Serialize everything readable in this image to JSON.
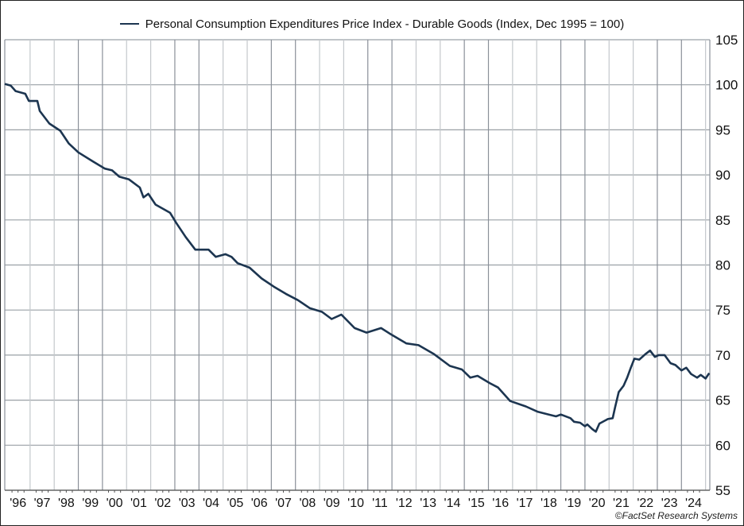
{
  "chart_data": {
    "type": "line",
    "title": "",
    "legend": [
      "Personal Consumption Expenditures Price Index - Durable Goods (Index, Dec 1995 = 100)"
    ],
    "legend_position": "top-center",
    "xlabel": "",
    "ylabel": "",
    "ylim": [
      55,
      105
    ],
    "xlim": [
      1995.95,
      2025.2
    ],
    "grid": true,
    "y_ticks": [
      "105",
      "100",
      "95",
      "90",
      "85",
      "80",
      "75",
      "70",
      "65",
      "60",
      "55"
    ],
    "x_ticks": [
      "'96",
      "'97",
      "'98",
      "'99",
      "'00",
      "'01",
      "'02",
      "'03",
      "'04",
      "'05",
      "'06",
      "'07",
      "'08",
      "'09",
      "'10",
      "'11",
      "'12",
      "'13",
      "'14",
      "'15",
      "'16",
      "'17",
      "'18",
      "'19",
      "'20",
      "'21",
      "'22",
      "'23",
      "'24"
    ],
    "series": [
      {
        "name": "Personal Consumption Expenditures Price Index - Durable Goods (Index, Dec 1995 = 100)",
        "color": "#1c3550",
        "x": [
          1995.95,
          1996.2,
          1996.4,
          1996.8,
          1996.95,
          1997.3,
          1997.4,
          1997.8,
          1998.25,
          1998.6,
          1999.0,
          1999.6,
          2000.1,
          2000.4,
          2000.7,
          2001.1,
          2001.55,
          2001.7,
          2001.9,
          2002.2,
          2002.8,
          2003.05,
          2003.45,
          2003.85,
          2004.4,
          2004.7,
          2005.1,
          2005.35,
          2005.6,
          2006.1,
          2006.6,
          2007.1,
          2007.6,
          2008.1,
          2008.6,
          2009.1,
          2009.5,
          2009.9,
          2010.45,
          2010.95,
          2011.55,
          2011.9,
          2012.6,
          2013.1,
          2013.75,
          2014.4,
          2014.9,
          2015.25,
          2015.55,
          2016.05,
          2016.4,
          2016.9,
          2017.55,
          2018.05,
          2018.5,
          2018.8,
          2019.0,
          2019.4,
          2019.55,
          2019.8,
          2020.0,
          2020.1,
          2020.3,
          2020.45,
          2020.6,
          2020.95,
          2021.15,
          2021.25,
          2021.4,
          2021.6,
          2021.75,
          2021.9,
          2022.05,
          2022.25,
          2022.5,
          2022.7,
          2022.9,
          2023.05,
          2023.3,
          2023.55,
          2023.75,
          2024.0,
          2024.2,
          2024.4,
          2024.65,
          2024.8,
          2025.0,
          2025.15
        ],
        "y": [
          100.1,
          99.9,
          99.3,
          99.0,
          98.2,
          98.2,
          97.1,
          95.7,
          94.9,
          93.5,
          92.5,
          91.5,
          90.7,
          90.5,
          89.8,
          89.5,
          88.6,
          87.5,
          87.9,
          86.7,
          85.8,
          84.7,
          83.1,
          81.7,
          81.7,
          80.9,
          81.2,
          80.9,
          80.2,
          79.7,
          78.5,
          77.6,
          76.8,
          76.1,
          75.2,
          74.8,
          74.0,
          74.5,
          73.0,
          72.5,
          73.0,
          72.4,
          71.3,
          71.1,
          70.1,
          68.8,
          68.4,
          67.5,
          67.7,
          66.9,
          66.4,
          64.9,
          64.3,
          63.7,
          63.4,
          63.2,
          63.4,
          63.0,
          62.6,
          62.5,
          62.1,
          62.3,
          61.8,
          61.5,
          62.4,
          62.9,
          63.0,
          64.2,
          65.9,
          66.6,
          67.5,
          68.6,
          69.6,
          69.5,
          70.1,
          70.5,
          69.8,
          70.0,
          70.0,
          69.1,
          68.9,
          68.3,
          68.6,
          67.9,
          67.5,
          67.8,
          67.4,
          68.0
        ]
      }
    ]
  },
  "credit": "©FactSet Research Systems"
}
